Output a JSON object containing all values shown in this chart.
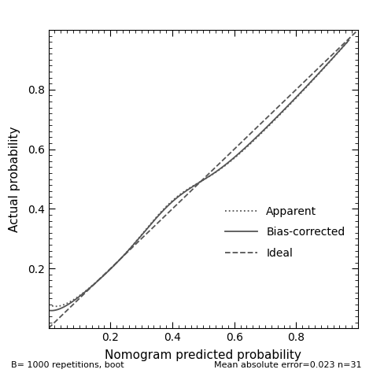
{
  "xlabel": "Nomogram predicted probability",
  "ylabel": "Actual probability",
  "xlim": [
    0.0,
    1.0
  ],
  "ylim": [
    0.0,
    1.0
  ],
  "xticks": [
    0.2,
    0.4,
    0.6,
    0.8
  ],
  "yticks": [
    0.2,
    0.4,
    0.6,
    0.8
  ],
  "footnote_left": "B= 1000 repetitions, boot",
  "footnote_right": "Mean absolute error=0.023 n=31",
  "background_color": "#ffffff",
  "legend_entries": [
    "Apparent",
    "Bias-corrected",
    "Ideal"
  ],
  "line_color": "#555555",
  "xlabel_fontsize": 11,
  "ylabel_fontsize": 11,
  "tick_labelsize": 10,
  "footnote_fontsize": 8,
  "legend_fontsize": 10
}
